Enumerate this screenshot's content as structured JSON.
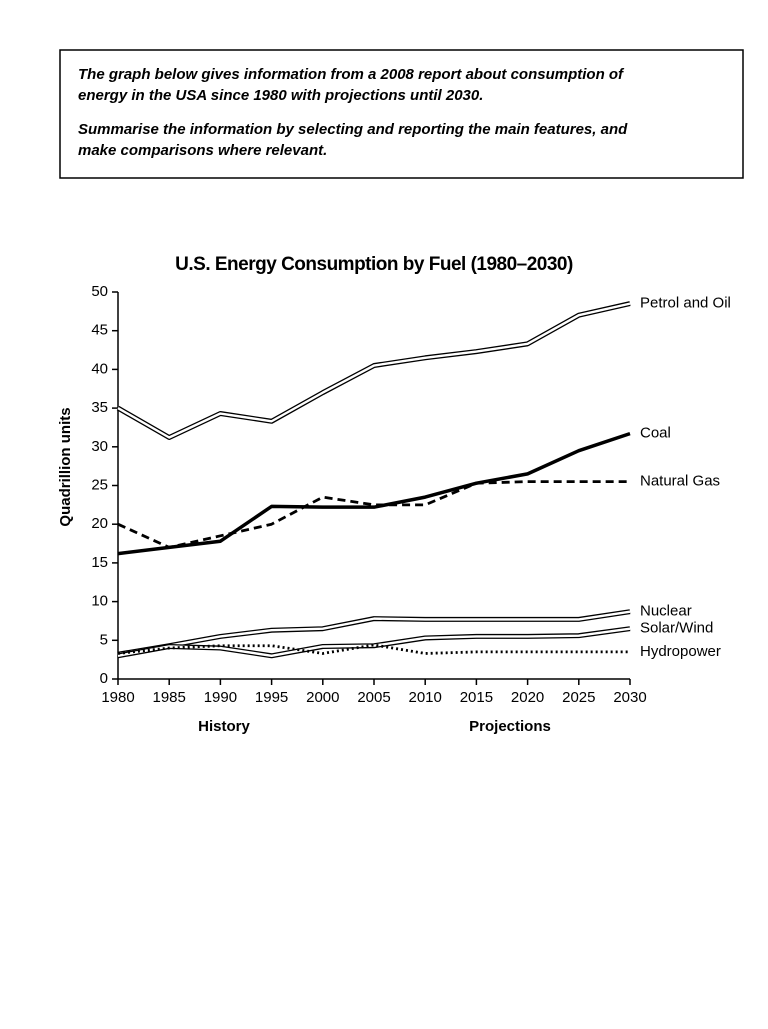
{
  "prompt": {
    "paragraphs": [
      [
        "The graph below gives information from a 2008 report about consumption of",
        "energy in the USA since 1980 with projections until 2030."
      ],
      [
        "Summarise the information by selecting and reporting the main features, and",
        "make comparisons where relevant."
      ]
    ]
  },
  "chart_data": {
    "type": "line",
    "title": "U.S. Energy Consumption by Fuel (1980–2030)",
    "y_label": "Quadrillion units",
    "annotations": [
      "History",
      "Projections"
    ],
    "x": [
      1980,
      1985,
      1990,
      1995,
      2000,
      2005,
      2010,
      2015,
      2020,
      2025,
      2030
    ],
    "xlim": [
      1980,
      2030
    ],
    "xticks": [
      1980,
      1985,
      1990,
      1995,
      2000,
      2005,
      2010,
      2015,
      2020,
      2025,
      2030
    ],
    "ylim": [
      0,
      50
    ],
    "yticks": [
      0,
      5,
      10,
      15,
      20,
      25,
      30,
      35,
      40,
      45,
      50
    ],
    "grid": false,
    "legend": "end-labels",
    "series": [
      {
        "name": "Petrol and Oil",
        "color": "#000000",
        "line_style": "double",
        "values": [
          35,
          31.2,
          34.3,
          33.3,
          37,
          40.5,
          41.5,
          42.3,
          43.3,
          47,
          48.5
        ]
      },
      {
        "name": "Coal",
        "color": "#000000",
        "line_style": "solid",
        "values": [
          16.2,
          17,
          17.8,
          22.3,
          22.2,
          22.2,
          23.5,
          25.3,
          26.5,
          29.5,
          31.7
        ]
      },
      {
        "name": "Natural Gas",
        "color": "#000000",
        "line_style": "dashed",
        "values": [
          20,
          17,
          18.5,
          20,
          23.5,
          22.5,
          22.5,
          25.3,
          25.5,
          25.5,
          25.5
        ]
      },
      {
        "name": "Nuclear",
        "color": "#000000",
        "line_style": "double",
        "values": [
          3.2,
          4.3,
          5.5,
          6.3,
          6.5,
          7.8,
          7.7,
          7.7,
          7.7,
          7.7,
          8.7
        ]
      },
      {
        "name": "Solar/Wind",
        "color": "#000000",
        "line_style": "double",
        "values": [
          3.0,
          4.2,
          4.0,
          3.0,
          4.2,
          4.3,
          5.3,
          5.5,
          5.5,
          5.6,
          6.5
        ]
      },
      {
        "name": "Hydropower",
        "color": "#000000",
        "line_style": "dotted",
        "values": [
          3.3,
          4.0,
          4.3,
          4.3,
          3.3,
          4.4,
          3.3,
          3.5,
          3.5,
          3.5,
          3.5
        ]
      }
    ]
  }
}
